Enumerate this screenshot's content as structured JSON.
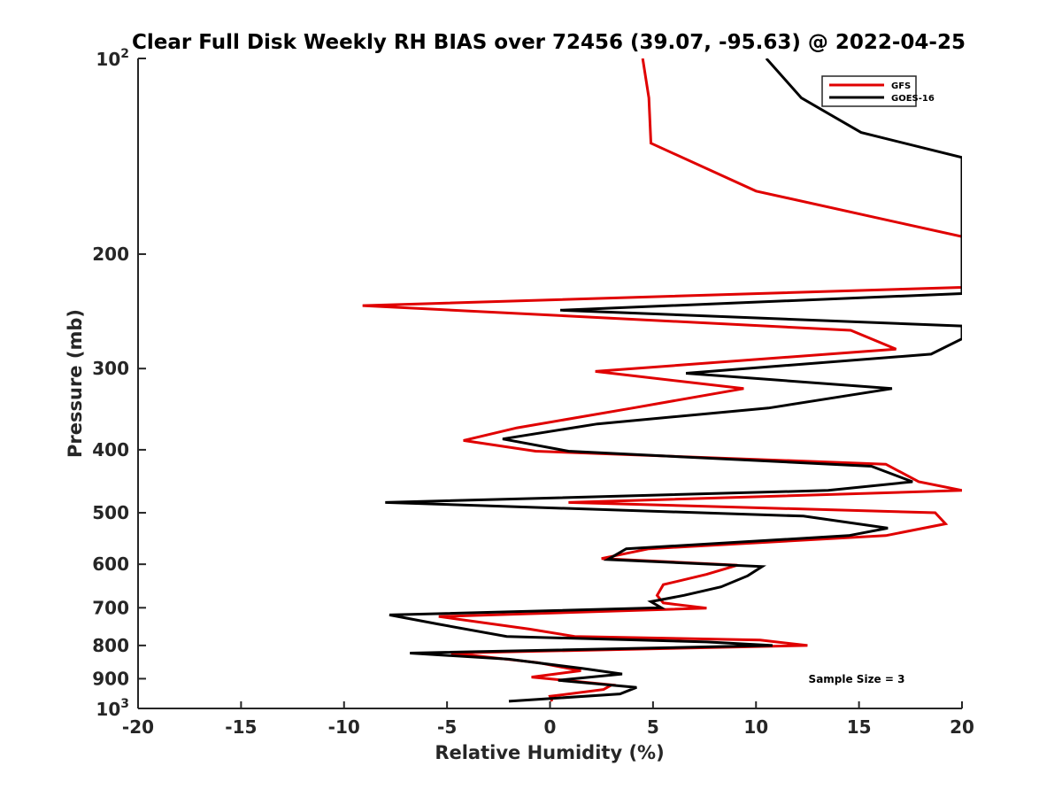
{
  "chart_data": {
    "type": "line",
    "title": "Clear Full Disk Weekly RH BIAS over 72456 (39.07, -95.63) @ 2022-04-25",
    "xlabel": "Relative Humidity (%)",
    "ylabel": "Pressure (mb)",
    "xlim": [
      -20,
      20
    ],
    "ylim": [
      100,
      1000
    ],
    "yscale": "log",
    "y_reversed": true,
    "grid": false,
    "xticks": [
      "-20",
      "-15",
      "-10",
      "-5",
      "0",
      "5",
      "10",
      "15",
      "20"
    ],
    "yticks": [
      {
        "value": 100,
        "base": "10",
        "exp": "2"
      },
      {
        "value": 200,
        "label": "200"
      },
      {
        "value": 300,
        "label": "300"
      },
      {
        "value": 400,
        "label": "400"
      },
      {
        "value": 500,
        "label": "500"
      },
      {
        "value": 600,
        "label": "600"
      },
      {
        "value": 700,
        "label": "700"
      },
      {
        "value": 800,
        "label": "800"
      },
      {
        "value": 900,
        "label": "900"
      },
      {
        "value": 1000,
        "base": "10",
        "exp": "3"
      }
    ],
    "legend_position": "top-right",
    "annotation": "Sample Size = 3",
    "series": [
      {
        "name": "GFS",
        "color": "#e00000",
        "points": [
          [
            4.5,
            100
          ],
          [
            4.8,
            115
          ],
          [
            4.9,
            135
          ],
          [
            10,
            160
          ],
          [
            20,
            188
          ],
          [
            20,
            225
          ],
          [
            -9.1,
            240
          ],
          [
            14.6,
            262
          ],
          [
            16.8,
            280
          ],
          [
            2.2,
            303
          ],
          [
            9.4,
            322
          ],
          [
            4.0,
            345
          ],
          [
            -1.6,
            370
          ],
          [
            -4.2,
            387
          ],
          [
            -0.7,
            402
          ],
          [
            16.3,
            421
          ],
          [
            17.9,
            448
          ],
          [
            20,
            462
          ],
          [
            0.9,
            482
          ],
          [
            18.7,
            500
          ],
          [
            19.2,
            520
          ],
          [
            16.3,
            542
          ],
          [
            4.8,
            568
          ],
          [
            2.5,
            588
          ],
          [
            9.1,
            602
          ],
          [
            7.6,
            622
          ],
          [
            5.5,
            645
          ],
          [
            5.2,
            670
          ],
          [
            5.5,
            688
          ],
          [
            7.6,
            701
          ],
          [
            -5.4,
            722
          ],
          [
            -1.0,
            755
          ],
          [
            1.2,
            775
          ],
          [
            10.2,
            785
          ],
          [
            12.5,
            800
          ],
          [
            -4.8,
            822
          ],
          [
            -0.6,
            850
          ],
          [
            1.5,
            875
          ],
          [
            -0.9,
            895
          ],
          [
            3.0,
            920
          ],
          [
            2.6,
            935
          ],
          [
            0,
            958
          ],
          [
            0.1,
            975
          ]
        ]
      },
      {
        "name": "GOES-16",
        "color": "#000000",
        "points": [
          [
            10.5,
            100
          ],
          [
            12.2,
            115
          ],
          [
            15.1,
            130
          ],
          [
            20,
            142
          ],
          [
            20,
            230
          ],
          [
            0.5,
            244
          ],
          [
            20,
            258
          ],
          [
            20,
            270
          ],
          [
            18.5,
            285
          ],
          [
            6.6,
            305
          ],
          [
            16.6,
            322
          ],
          [
            10.6,
            345
          ],
          [
            2.3,
            365
          ],
          [
            -2.3,
            385
          ],
          [
            0.9,
            402
          ],
          [
            15.6,
            424
          ],
          [
            17.6,
            448
          ],
          [
            13.5,
            462
          ],
          [
            -8.0,
            482
          ],
          [
            12.3,
            506
          ],
          [
            16.4,
            528
          ],
          [
            14.5,
            542
          ],
          [
            3.7,
            568
          ],
          [
            2.8,
            590
          ],
          [
            10.3,
            605
          ],
          [
            9.6,
            625
          ],
          [
            8.3,
            650
          ],
          [
            6.5,
            670
          ],
          [
            4.9,
            685
          ],
          [
            5.4,
            700
          ],
          [
            -7.8,
            718
          ],
          [
            -5.4,
            742
          ],
          [
            -2.1,
            775
          ],
          [
            7.6,
            790
          ],
          [
            10.8,
            800
          ],
          [
            -6.8,
            822
          ],
          [
            -2.0,
            840
          ],
          [
            1.6,
            868
          ],
          [
            3.5,
            885
          ],
          [
            0.4,
            905
          ],
          [
            4.2,
            928
          ],
          [
            3.4,
            950
          ],
          [
            -2.0,
            975
          ]
        ]
      }
    ]
  }
}
